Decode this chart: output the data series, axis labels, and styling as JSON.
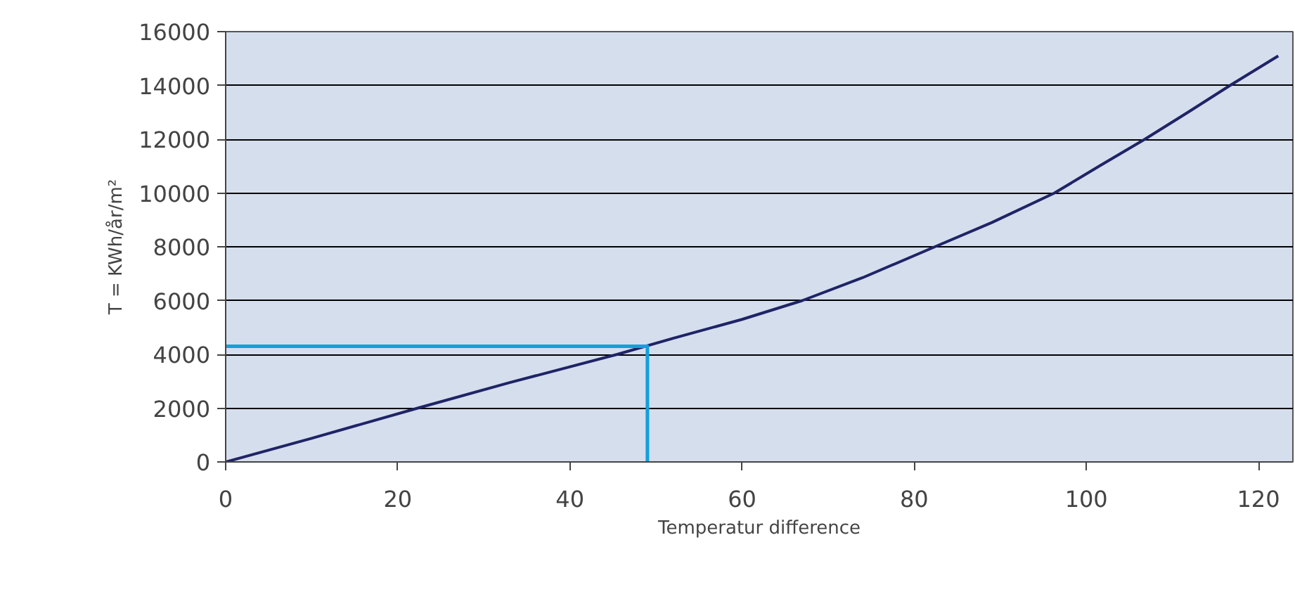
{
  "chart_data": {
    "type": "line",
    "xlabel": "Temperatur difference",
    "ylabel": "T = KWh/år/m²",
    "xlim": [
      0,
      124
    ],
    "ylim": [
      0,
      16000
    ],
    "xticks": [
      0,
      20,
      40,
      60,
      80,
      100,
      120
    ],
    "yticks": [
      0,
      2000,
      4000,
      6000,
      8000,
      10000,
      12000,
      14000,
      16000
    ],
    "grid": "y",
    "series": [
      {
        "color": "#1f2466",
        "x": [
          0,
          10,
          22.3,
          33,
          45.5,
          52,
          60,
          67,
          74,
          82.4,
          89,
          96.3,
          101.5,
          106.8,
          111.8,
          116.7,
          122.3
        ],
        "values": [
          0,
          880,
          2000,
          2950,
          4000,
          4600,
          5300,
          6000,
          6850,
          8000,
          8900,
          10000,
          11000,
          12000,
          13000,
          14000,
          15100
        ]
      },
      {
        "color": "#12a0dc",
        "x": [
          0,
          49,
          49
        ],
        "values": [
          4300,
          4300,
          0
        ]
      }
    ]
  }
}
